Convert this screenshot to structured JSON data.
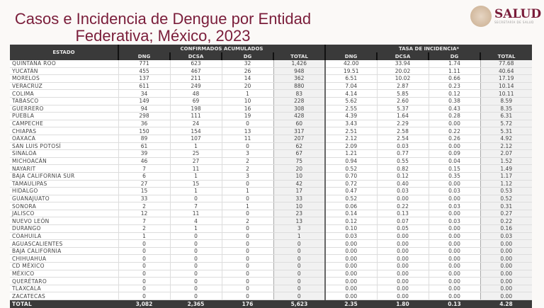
{
  "title": "Casos e Incidencia de Dengue por Entidad Federativa; México, 2023",
  "logo": {
    "text": "SALUD",
    "subtitle": "SECRETARÍA DE SALUD"
  },
  "table": {
    "estado_header": "ESTADO",
    "group1": "CONFIRMADOS ACUMULADOS",
    "group2": "TASA DE INCIDENCIA*",
    "subheaders": [
      "DNG",
      "DCSA",
      "DG",
      "TOTAL",
      "DNG",
      "DCSA",
      "DG",
      "TOTAL"
    ],
    "rows": [
      [
        "QUINTANA ROO",
        "771",
        "623",
        "32",
        "1,426",
        "42.00",
        "33.94",
        "1.74",
        "77.68"
      ],
      [
        "YUCATÁN",
        "455",
        "467",
        "26",
        "948",
        "19.51",
        "20.02",
        "1.11",
        "40.64"
      ],
      [
        "MORELOS",
        "137",
        "211",
        "14",
        "362",
        "6.51",
        "10.02",
        "0.66",
        "17.19"
      ],
      [
        "VERACRUZ",
        "611",
        "249",
        "20",
        "880",
        "7.04",
        "2.87",
        "0.23",
        "10.14"
      ],
      [
        "COLIMA",
        "34",
        "48",
        "1",
        "83",
        "4.14",
        "5.85",
        "0.12",
        "10.11"
      ],
      [
        "TABASCO",
        "149",
        "69",
        "10",
        "228",
        "5.62",
        "2.60",
        "0.38",
        "8.59"
      ],
      [
        "GUERRERO",
        "94",
        "198",
        "16",
        "308",
        "2.55",
        "5.37",
        "0.43",
        "8.35"
      ],
      [
        "PUEBLA",
        "298",
        "111",
        "19",
        "428",
        "4.39",
        "1.64",
        "0.28",
        "6.31"
      ],
      [
        "CAMPECHE",
        "36",
        "24",
        "0",
        "60",
        "3.43",
        "2.29",
        "0.00",
        "5.72"
      ],
      [
        "CHIAPAS",
        "150",
        "154",
        "13",
        "317",
        "2.51",
        "2.58",
        "0.22",
        "5.31"
      ],
      [
        "OAXACA",
        "89",
        "107",
        "11",
        "207",
        "2.12",
        "2.54",
        "0.26",
        "4.92"
      ],
      [
        "SAN LUIS POTOSÍ",
        "61",
        "1",
        "0",
        "62",
        "2.09",
        "0.03",
        "0.00",
        "2.12"
      ],
      [
        "SINALOA",
        "39",
        "25",
        "3",
        "67",
        "1.21",
        "0.77",
        "0.09",
        "2.07"
      ],
      [
        "MICHOACÁN",
        "46",
        "27",
        "2",
        "75",
        "0.94",
        "0.55",
        "0.04",
        "1.52"
      ],
      [
        "NAYARIT",
        "7",
        "11",
        "2",
        "20",
        "0.52",
        "0.82",
        "0.15",
        "1.49"
      ],
      [
        "BAJA CALIFORNIA SUR",
        "6",
        "1",
        "3",
        "10",
        "0.70",
        "0.12",
        "0.35",
        "1.17"
      ],
      [
        "TAMAULIPAS",
        "27",
        "15",
        "0",
        "42",
        "0.72",
        "0.40",
        "0.00",
        "1.12"
      ],
      [
        "HIDALGO",
        "15",
        "1",
        "1",
        "17",
        "0.47",
        "0.03",
        "0.03",
        "0.53"
      ],
      [
        "GUANAJUATO",
        "33",
        "0",
        "0",
        "33",
        "0.52",
        "0.00",
        "0.00",
        "0.52"
      ],
      [
        "SONORA",
        "2",
        "7",
        "1",
        "10",
        "0.06",
        "0.22",
        "0.03",
        "0.31"
      ],
      [
        "JALISCO",
        "12",
        "11",
        "0",
        "23",
        "0.14",
        "0.13",
        "0.00",
        "0.27"
      ],
      [
        "NUEVO LEÓN",
        "7",
        "4",
        "2",
        "13",
        "0.12",
        "0.07",
        "0.03",
        "0.22"
      ],
      [
        "DURANGO",
        "2",
        "1",
        "0",
        "3",
        "0.10",
        "0.05",
        "0.00",
        "0.16"
      ],
      [
        "COAHUILA",
        "1",
        "0",
        "0",
        "1",
        "0.03",
        "0.00",
        "0.00",
        "0.03"
      ],
      [
        "AGUASCALIENTES",
        "0",
        "0",
        "0",
        "0",
        "0.00",
        "0.00",
        "0.00",
        "0.00"
      ],
      [
        "BAJA CALIFORNIA",
        "0",
        "0",
        "0",
        "0",
        "0.00",
        "0.00",
        "0.00",
        "0.00"
      ],
      [
        "CHIHUAHUA",
        "0",
        "0",
        "0",
        "0",
        "0.00",
        "0.00",
        "0.00",
        "0.00"
      ],
      [
        "CD MÉXICO",
        "0",
        "0",
        "0",
        "0",
        "0.00",
        "0.00",
        "0.00",
        "0.00"
      ],
      [
        "MÉXICO",
        "0",
        "0",
        "0",
        "0",
        "0.00",
        "0.00",
        "0.00",
        "0.00"
      ],
      [
        "QUERÉTARO",
        "0",
        "0",
        "0",
        "0",
        "0.00",
        "0.00",
        "0.00",
        "0.00"
      ],
      [
        "TLAXCALA",
        "0",
        "0",
        "0",
        "0",
        "0.00",
        "0.00",
        "0.00",
        "0.00"
      ],
      [
        "ZACATECAS",
        "0",
        "0",
        "0",
        "0",
        "0.00",
        "0.00",
        "0.00",
        "0.00"
      ]
    ],
    "total": [
      "TOTAL",
      "3,082",
      "2,365",
      "176",
      "5,623",
      "2.35",
      "1.80",
      "0.13",
      "4.28"
    ]
  }
}
